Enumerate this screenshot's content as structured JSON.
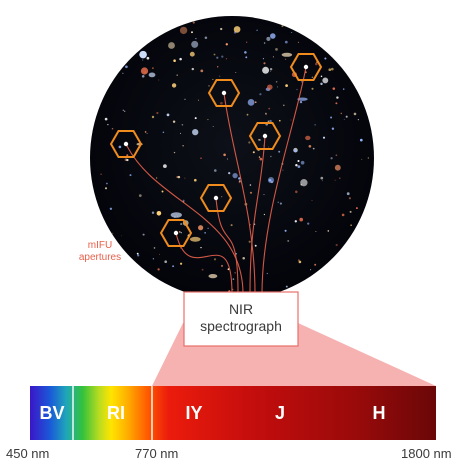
{
  "spectrograph": {
    "line1": "NIR",
    "line2": "spectrograph"
  },
  "annotation": {
    "line1": "mIFU",
    "line2": "apertures"
  },
  "bands": [
    {
      "label": "BV"
    },
    {
      "label": "RI"
    },
    {
      "label": "IY"
    },
    {
      "label": "J"
    },
    {
      "label": "H"
    }
  ],
  "wavelength_ticks": [
    {
      "label": "450 nm"
    },
    {
      "label": "770 nm"
    },
    {
      "label": "1800 nm"
    }
  ],
  "colors": {
    "hexagon": "#f08c1e",
    "fiber": "#e8604b",
    "box_border": "#e8706a",
    "fan": "#f4a3a3",
    "sky": "#05060a"
  },
  "aperture_count": 6
}
